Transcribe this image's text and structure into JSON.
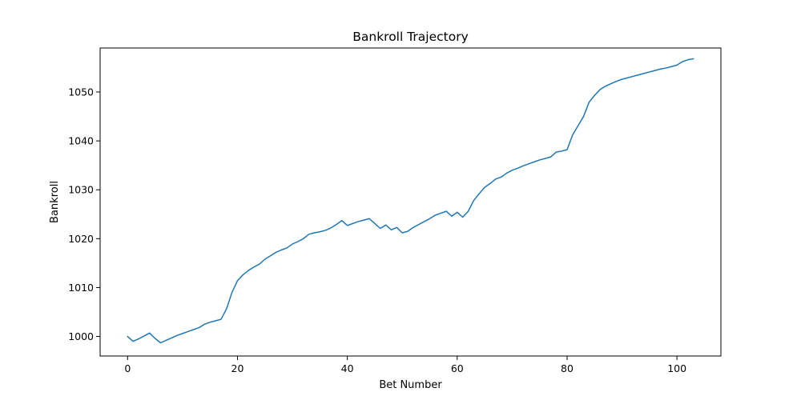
{
  "chart_data": {
    "type": "line",
    "title": "Bankroll Trajectory",
    "xlabel": "Bet Number",
    "ylabel": "Bankroll",
    "xlim": [
      -5,
      108
    ],
    "ylim": [
      996,
      1059
    ],
    "xticks": [
      0,
      20,
      40,
      60,
      80,
      100
    ],
    "yticks": [
      1000,
      1010,
      1020,
      1030,
      1040,
      1050
    ],
    "grid": false,
    "legend": "none",
    "series": [
      {
        "color": "#1f77b4",
        "x": [
          0,
          1,
          2,
          3,
          4,
          5,
          6,
          7,
          8,
          9,
          10,
          11,
          12,
          13,
          14,
          15,
          16,
          17,
          18,
          19,
          20,
          21,
          22,
          23,
          24,
          25,
          26,
          27,
          28,
          29,
          30,
          31,
          32,
          33,
          34,
          35,
          36,
          37,
          38,
          39,
          40,
          41,
          42,
          43,
          44,
          45,
          46,
          47,
          48,
          49,
          50,
          51,
          52,
          53,
          54,
          55,
          56,
          57,
          58,
          59,
          60,
          61,
          62,
          63,
          64,
          65,
          66,
          67,
          68,
          69,
          70,
          71,
          72,
          73,
          74,
          75,
          76,
          77,
          78,
          79,
          80,
          81,
          82,
          83,
          84,
          85,
          86,
          87,
          88,
          89,
          90,
          91,
          92,
          93,
          94,
          95,
          96,
          97,
          98,
          99,
          100,
          101,
          102,
          103
        ],
        "y": [
          1000,
          999,
          999.5,
          1000.1,
          1000.7,
          999.6,
          998.7,
          999.2,
          999.7,
          1000.2,
          1000.6,
          1001.0,
          1001.4,
          1001.8,
          1002.5,
          1002.9,
          1003.2,
          1003.5,
          1005.6,
          1009.0,
          1011.4,
          1012.6,
          1013.5,
          1014.2,
          1014.8,
          1015.8,
          1016.5,
          1017.2,
          1017.7,
          1018.1,
          1018.9,
          1019.4,
          1020.0,
          1020.9,
          1021.2,
          1021.4,
          1021.7,
          1022.2,
          1022.9,
          1023.7,
          1022.7,
          1023.1,
          1023.5,
          1023.8,
          1024.1,
          1023.1,
          1022.1,
          1022.8,
          1021.8,
          1022.3,
          1021.2,
          1021.5,
          1022.3,
          1022.9,
          1023.5,
          1024.1,
          1024.8,
          1025.2,
          1025.6,
          1024.6,
          1025.4,
          1024.4,
          1025.6,
          1027.8,
          1029.2,
          1030.5,
          1031.3,
          1032.2,
          1032.6,
          1033.4,
          1034.0,
          1034.4,
          1034.9,
          1035.3,
          1035.7,
          1036.1,
          1036.4,
          1036.7,
          1037.7,
          1037.9,
          1038.2,
          1041.2,
          1043.1,
          1045.0,
          1047.9,
          1049.3,
          1050.5,
          1051.2,
          1051.7,
          1052.2,
          1052.6,
          1052.9,
          1053.2,
          1053.5,
          1053.8,
          1054.1,
          1054.4,
          1054.7,
          1054.9,
          1055.2,
          1055.5,
          1056.2,
          1056.6,
          1056.8
        ]
      }
    ]
  }
}
